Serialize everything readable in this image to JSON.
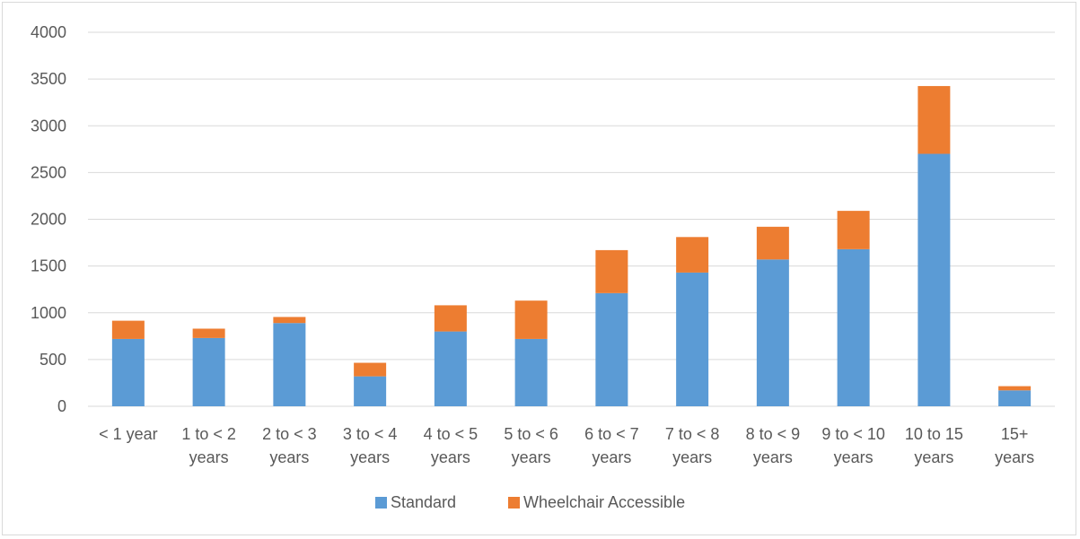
{
  "chart_data": {
    "type": "bar",
    "stacked": true,
    "categories": [
      [
        "< 1 year"
      ],
      [
        "1 to < 2",
        "years"
      ],
      [
        "2 to < 3",
        "years"
      ],
      [
        "3 to < 4",
        "years"
      ],
      [
        "4 to < 5",
        "years"
      ],
      [
        "5 to < 6",
        "years"
      ],
      [
        "6 to < 7",
        "years"
      ],
      [
        "7 to < 8",
        "years"
      ],
      [
        "8 to < 9",
        "years"
      ],
      [
        "9 to < 10",
        "years"
      ],
      [
        "10 to 15",
        "years"
      ],
      [
        "15+",
        "years"
      ]
    ],
    "series": [
      {
        "name": "Standard",
        "color": "#5b9bd5",
        "values": [
          720,
          730,
          890,
          320,
          800,
          720,
          1210,
          1430,
          1570,
          1680,
          2700,
          170
        ]
      },
      {
        "name": "Wheelchair Accessible",
        "color": "#ed7d31",
        "values": [
          195,
          100,
          65,
          145,
          280,
          410,
          460,
          380,
          350,
          410,
          725,
          45
        ]
      }
    ],
    "ylim": [
      0,
      4000
    ],
    "yticks": [
      0,
      500,
      1000,
      1500,
      2000,
      2500,
      3000,
      3500,
      4000
    ],
    "grid": true,
    "legend_position": "bottom"
  }
}
